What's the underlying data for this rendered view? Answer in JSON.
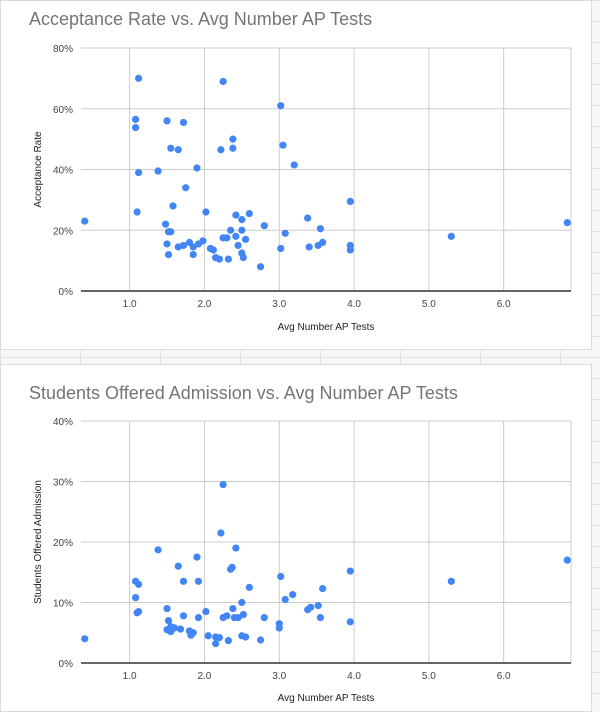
{
  "colors": {
    "point": "#4285F4",
    "grid": "#cccccc",
    "axis": "#333333",
    "title": "#757575"
  },
  "chart_data": [
    {
      "type": "scatter",
      "title": "Acceptance Rate vs. Avg Number AP Tests",
      "xlabel": "Avg Number AP Tests",
      "ylabel": "Acceptance Rate",
      "xlim": [
        0.35,
        6.9
      ],
      "ylim": [
        0,
        80
      ],
      "xticks": [
        1,
        2,
        3,
        4,
        5,
        6
      ],
      "xtick_labels": [
        "1.0",
        "2.0",
        "3.0",
        "4.0",
        "5.0",
        "6.0"
      ],
      "yticks": [
        0,
        20,
        40,
        60,
        80
      ],
      "ytick_labels": [
        "0%",
        "20%",
        "40%",
        "60%",
        "80%"
      ],
      "grid": true,
      "legend": "none",
      "points": [
        [
          0.4,
          23
        ],
        [
          1.08,
          56.5
        ],
        [
          1.08,
          53.8
        ],
        [
          1.12,
          70
        ],
        [
          1.1,
          26
        ],
        [
          1.12,
          39
        ],
        [
          1.38,
          39.5
        ],
        [
          1.5,
          56
        ],
        [
          1.55,
          47
        ],
        [
          1.65,
          46.5
        ],
        [
          1.72,
          55.5
        ],
        [
          1.75,
          34
        ],
        [
          1.9,
          40.5
        ],
        [
          1.48,
          22
        ],
        [
          1.58,
          28
        ],
        [
          1.52,
          19.5
        ],
        [
          1.55,
          19.5
        ],
        [
          1.5,
          15.5
        ],
        [
          1.52,
          12
        ],
        [
          1.65,
          14.5
        ],
        [
          1.72,
          15
        ],
        [
          1.8,
          16
        ],
        [
          1.85,
          14.5
        ],
        [
          1.85,
          12
        ],
        [
          1.92,
          15.5
        ],
        [
          1.98,
          16.5
        ],
        [
          2.02,
          26
        ],
        [
          2.08,
          14
        ],
        [
          2.12,
          13.5
        ],
        [
          2.15,
          11
        ],
        [
          2.2,
          10.5
        ],
        [
          2.22,
          46.5
        ],
        [
          2.25,
          69
        ],
        [
          2.25,
          17.5
        ],
        [
          2.3,
          17.5
        ],
        [
          2.32,
          10.5
        ],
        [
          2.35,
          20
        ],
        [
          2.38,
          50
        ],
        [
          2.38,
          47
        ],
        [
          2.42,
          25
        ],
        [
          2.42,
          18
        ],
        [
          2.45,
          15
        ],
        [
          2.5,
          23.5
        ],
        [
          2.5,
          20
        ],
        [
          2.5,
          12.5
        ],
        [
          2.52,
          11
        ],
        [
          2.55,
          17
        ],
        [
          2.6,
          25.5
        ],
        [
          2.75,
          8
        ],
        [
          2.8,
          21.5
        ],
        [
          3.02,
          61
        ],
        [
          3.05,
          48
        ],
        [
          3.02,
          14
        ],
        [
          3.08,
          19
        ],
        [
          3.2,
          41.5
        ],
        [
          3.38,
          24
        ],
        [
          3.4,
          14.5
        ],
        [
          3.52,
          15
        ],
        [
          3.55,
          20.5
        ],
        [
          3.58,
          16
        ],
        [
          3.95,
          29.5
        ],
        [
          3.95,
          15
        ],
        [
          3.95,
          13.5
        ],
        [
          5.3,
          18
        ],
        [
          6.85,
          22.5
        ]
      ]
    },
    {
      "type": "scatter",
      "title": "Students Offered Admission vs. Avg Number AP Tests",
      "xlabel": "Avg Number AP Tests",
      "ylabel": "Students Offered Admission",
      "xlim": [
        0.35,
        6.9
      ],
      "ylim": [
        0,
        40
      ],
      "xticks": [
        1,
        2,
        3,
        4,
        5,
        6
      ],
      "xtick_labels": [
        "1.0",
        "2.0",
        "3.0",
        "4.0",
        "5.0",
        "6.0"
      ],
      "yticks": [
        0,
        10,
        20,
        30,
        40
      ],
      "ytick_labels": [
        "0%",
        "10%",
        "20%",
        "30%",
        "40%"
      ],
      "grid": true,
      "legend": "none",
      "points": [
        [
          0.4,
          4
        ],
        [
          1.08,
          13.5
        ],
        [
          1.12,
          13
        ],
        [
          1.08,
          10.8
        ],
        [
          1.12,
          8.5
        ],
        [
          1.1,
          8.3
        ],
        [
          1.38,
          18.7
        ],
        [
          1.5,
          9
        ],
        [
          1.52,
          7
        ],
        [
          1.5,
          5.5
        ],
        [
          1.55,
          6
        ],
        [
          1.55,
          5.2
        ],
        [
          1.6,
          5.8
        ],
        [
          1.65,
          16
        ],
        [
          1.68,
          5.6
        ],
        [
          1.72,
          13.5
        ],
        [
          1.72,
          7.8
        ],
        [
          1.8,
          5.3
        ],
        [
          1.82,
          4.6
        ],
        [
          1.85,
          5
        ],
        [
          1.9,
          17.5
        ],
        [
          1.92,
          13.5
        ],
        [
          1.92,
          7.5
        ],
        [
          2.02,
          8.5
        ],
        [
          2.05,
          4.5
        ],
        [
          2.15,
          4.3
        ],
        [
          2.15,
          3.2
        ],
        [
          2.2,
          4.2
        ],
        [
          2.22,
          21.5
        ],
        [
          2.25,
          29.5
        ],
        [
          2.25,
          7.5
        ],
        [
          2.3,
          7.8
        ],
        [
          2.32,
          3.7
        ],
        [
          2.35,
          15.5
        ],
        [
          2.37,
          15.8
        ],
        [
          2.38,
          9
        ],
        [
          2.4,
          7.5
        ],
        [
          2.42,
          19
        ],
        [
          2.45,
          7.5
        ],
        [
          2.5,
          10
        ],
        [
          2.5,
          4.5
        ],
        [
          2.52,
          8
        ],
        [
          2.55,
          4.3
        ],
        [
          2.6,
          12.5
        ],
        [
          2.75,
          3.8
        ],
        [
          2.8,
          7.5
        ],
        [
          3.0,
          6.5
        ],
        [
          3.0,
          5.8
        ],
        [
          3.02,
          14.3
        ],
        [
          3.08,
          10.5
        ],
        [
          3.18,
          11.3
        ],
        [
          3.38,
          8.8
        ],
        [
          3.42,
          9.2
        ],
        [
          3.52,
          9.5
        ],
        [
          3.55,
          7.5
        ],
        [
          3.58,
          12.3
        ],
        [
          3.95,
          15.2
        ],
        [
          3.95,
          6.8
        ],
        [
          5.3,
          13.5
        ],
        [
          6.85,
          17
        ]
      ]
    }
  ]
}
